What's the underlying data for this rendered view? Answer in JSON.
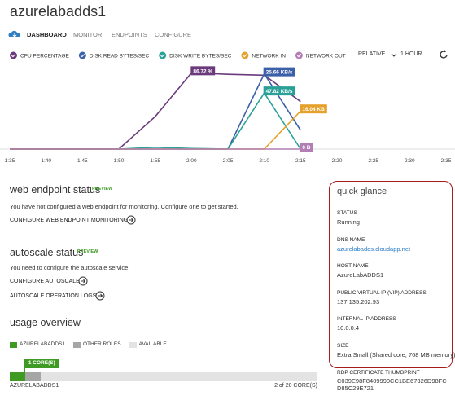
{
  "header": {
    "title": "azurelabadds1",
    "tabs": [
      "DASHBOARD",
      "MONITOR",
      "ENDPOINTS",
      "CONFIGURE"
    ]
  },
  "chart_controls": {
    "range_mode": "RELATIVE",
    "period": "1 HOUR"
  },
  "chart_data": {
    "type": "line",
    "categories": [
      "1:35",
      "1:40",
      "1:45",
      "1:50",
      "1:55",
      "2:00",
      "2:05",
      "2:10",
      "2:15",
      "2:20",
      "2:25",
      "2:30",
      "2:35"
    ],
    "series": [
      {
        "name": "CPU PERCENTAGE",
        "color": "#6b3a7d",
        "ylim": [
          0,
          100
        ],
        "values": [
          0,
          0,
          0,
          0,
          37,
          86.72,
          85,
          84,
          54,
          null,
          null,
          null,
          null
        ],
        "value_labels": [
          null,
          null,
          null,
          null,
          null,
          "86.72 %",
          null,
          null,
          null,
          null,
          null,
          null,
          null
        ]
      },
      {
        "name": "DISK READ BYTES/SEC",
        "color": "#3b5fa8",
        "ylim": [
          0,
          30
        ],
        "values": [
          0,
          0,
          0,
          0,
          0,
          0,
          0,
          25.66,
          6.4,
          null,
          null,
          null,
          null
        ],
        "value_labels": [
          null,
          null,
          null,
          null,
          null,
          null,
          null,
          "25.66 KB/s",
          null,
          null,
          null,
          null,
          null
        ]
      },
      {
        "name": "DISK WRITE BYTES/SEC",
        "color": "#2aa198",
        "ylim": [
          0,
          75
        ],
        "values": [
          0,
          0,
          0,
          0,
          1.5,
          0.5,
          0,
          47.82,
          0,
          null,
          null,
          null,
          null
        ],
        "value_labels": [
          null,
          null,
          null,
          null,
          null,
          null,
          null,
          "47.82 KB/s",
          null,
          null,
          null,
          null,
          null
        ]
      },
      {
        "name": "NETWORK IN",
        "color": "#e5a12b",
        "ylim": [
          0,
          37
        ],
        "values": [
          0,
          0,
          0,
          0,
          0,
          0,
          0,
          0,
          16.04,
          null,
          null,
          null,
          null
        ],
        "value_labels": [
          null,
          null,
          null,
          null,
          null,
          null,
          null,
          null,
          "16.04 KB",
          null,
          null,
          null,
          null
        ]
      },
      {
        "name": "NETWORK OUT",
        "color": "#b27eb5",
        "ylim": [
          0,
          1
        ],
        "values": [
          0,
          0,
          0,
          0,
          0,
          0,
          0,
          0,
          0,
          null,
          null,
          null,
          null
        ],
        "value_labels": [
          null,
          null,
          null,
          null,
          null,
          null,
          null,
          null,
          "0 B",
          null,
          null,
          null,
          null
        ]
      }
    ]
  },
  "web_endpoint": {
    "title": "web endpoint status",
    "badge": "PREVIEW",
    "text": "You have not configured a web endpoint for monitoring. Configure one to get started.",
    "link": "CONFIGURE WEB ENDPOINT MONITORING"
  },
  "autoscale": {
    "title": "autoscale status",
    "badge": "PREVIEW",
    "text": "You need to configure the autoscale service.",
    "links": [
      "CONFIGURE AUTOSCALE",
      "AUTOSCALE OPERATION LOGS"
    ]
  },
  "usage": {
    "title": "usage overview",
    "segments": [
      {
        "name": "AZURELABADDS1",
        "color": "#3f9a23",
        "value": 1,
        "value_label": "1 CORE(S)"
      },
      {
        "name": "OTHER ROLES",
        "color": "#a6a6a6",
        "value": 1
      },
      {
        "name": "AVAILABLE",
        "color": "#e3e3e3",
        "value": 18
      }
    ],
    "row_label": "AZURELABADDS1",
    "summary": "2 of 20 CORE(S)"
  },
  "quick_glance": {
    "title": "quick glance",
    "items": [
      {
        "label": "STATUS",
        "value": "Running"
      },
      {
        "label": "DNS NAME",
        "value": "azurelabadds.cloudapp.net"
      },
      {
        "label": "HOST NAME",
        "value": "AzureLabADDS1"
      },
      {
        "label": "PUBLIC VIRTUAL IP (VIP) ADDRESS",
        "value": "137.135.202.93"
      },
      {
        "label": "INTERNAL IP ADDRESS",
        "value": "10.0.0.4"
      },
      {
        "label": "SIZE",
        "value": "Extra Small (Shared core, 768 MB memory)"
      }
    ]
  },
  "rdp": {
    "label": "RDP CERTIFICATE THUMBPRINT",
    "value": "C039E98F8409990CC1BE67326D98FCD85C29E721"
  }
}
